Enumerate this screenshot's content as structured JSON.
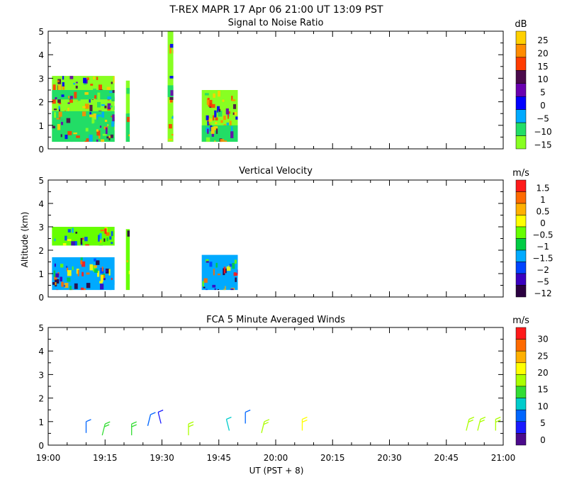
{
  "page": {
    "title": "T-REX  MAPR 17 Apr 06  21:00 UT  13:09  PST",
    "x_axis_label": "UT  (PST + 8)",
    "y_axis_label": "Altitude (km)"
  },
  "chart_data": [
    {
      "id": "snr",
      "type": "heatmap",
      "title": "Signal to Noise Ratio",
      "xlabel": "UT  (PST + 8)",
      "ylabel": "",
      "xlim": [
        0,
        120
      ],
      "ylim": [
        0,
        5
      ],
      "x_ticks": [
        "19:00",
        "19:15",
        "19:30",
        "19:45",
        "20:00",
        "20:15",
        "20:30",
        "20:45",
        "21:00"
      ],
      "y_ticks": [
        "0",
        "1",
        "2",
        "3",
        "4",
        "5"
      ],
      "colorbar": {
        "unit": "dB",
        "labels": [
          "25",
          "20",
          "15",
          "10",
          "5",
          "0",
          "−5",
          "−10",
          "−15"
        ],
        "colors": [
          "#ffd000",
          "#ff8c00",
          "#ff3c00",
          "#4b0a4b",
          "#6a00b0",
          "#0000ff",
          "#00aaff",
          "#22dd66",
          "#88ff22"
        ]
      },
      "data_regions": [
        {
          "t0": 1,
          "t1": 17.5,
          "alt0": 0.3,
          "alt1": 3.1,
          "fill": "#88ff22"
        },
        {
          "t0": 20.5,
          "t1": 21.5,
          "alt0": 0.3,
          "alt1": 2.9,
          "fill": "#88ff22"
        },
        {
          "t0": 31.5,
          "t1": 33,
          "alt0": 0.3,
          "alt1": 5.0,
          "fill": "#88ff22"
        },
        {
          "t0": 31.5,
          "t1": 33,
          "alt0": 2.2,
          "alt1": 2.7,
          "fill": "#22dd66"
        },
        {
          "t0": 1,
          "t1": 17.5,
          "alt0": 2.1,
          "alt1": 2.5,
          "fill": "#22dd66"
        },
        {
          "t0": 1,
          "t1": 17.5,
          "alt0": 0.3,
          "alt1": 1.6,
          "fill": "#22dd66"
        },
        {
          "t0": 20.5,
          "t1": 21.5,
          "alt0": 0.3,
          "alt1": 1.5,
          "fill": "#22dd66"
        },
        {
          "t0": 40.5,
          "t1": 50,
          "alt0": 0.3,
          "alt1": 2.5,
          "fill": "#88ff22"
        },
        {
          "t0": 40.5,
          "t1": 50,
          "alt0": 0.3,
          "alt1": 1.0,
          "fill": "#22dd66"
        }
      ]
    },
    {
      "id": "vv",
      "type": "heatmap",
      "title": "Vertical Velocity",
      "xlabel": "UT  (PST + 8)",
      "ylabel": "Altitude (km)",
      "xlim": [
        0,
        120
      ],
      "ylim": [
        0,
        5
      ],
      "x_ticks": [
        "19:00",
        "19:15",
        "19:30",
        "19:45",
        "20:00",
        "20:15",
        "20:30",
        "20:45",
        "21:00"
      ],
      "y_ticks": [
        "0",
        "1",
        "2",
        "3",
        "4",
        "5"
      ],
      "colorbar": {
        "unit": "m/s",
        "labels": [
          "1.5",
          "1",
          "0.5",
          "0",
          "−0.5",
          "−1",
          "−1.5",
          "−2",
          "−5",
          "−12"
        ],
        "colors": [
          "#ff1a1a",
          "#ff6a00",
          "#ffb000",
          "#ffff00",
          "#66ff00",
          "#00cc44",
          "#00aaff",
          "#0044ff",
          "#3a00c0",
          "#2a0040"
        ]
      },
      "data_regions": [
        {
          "t0": 1,
          "t1": 17.5,
          "alt0": 2.2,
          "alt1": 3.0,
          "fill": "#66ff00"
        },
        {
          "t0": 1,
          "t1": 17.5,
          "alt0": 0.3,
          "alt1": 1.7,
          "fill": "#00aaff"
        },
        {
          "t0": 20.5,
          "t1": 21.5,
          "alt0": 0.3,
          "alt1": 2.9,
          "fill": "#66ff00"
        },
        {
          "t0": 40.5,
          "t1": 50,
          "alt0": 0.3,
          "alt1": 1.8,
          "fill": "#00aaff"
        }
      ]
    },
    {
      "id": "winds",
      "type": "scatter",
      "title": "FCA 5 Minute Averaged Winds",
      "xlabel": "UT  (PST + 8)",
      "ylabel": "",
      "xlim": [
        0,
        120
      ],
      "ylim": [
        0,
        5
      ],
      "x_ticks": [
        "19:00",
        "19:15",
        "19:30",
        "19:45",
        "20:00",
        "20:15",
        "20:30",
        "20:45",
        "21:00"
      ],
      "y_ticks": [
        "0",
        "1",
        "2",
        "3",
        "4",
        "5"
      ],
      "colorbar": {
        "unit": "m/s",
        "labels": [
          "30",
          "25",
          "20",
          "15",
          "10",
          "5",
          "0"
        ],
        "colors": [
          "#ff1a1a",
          "#ff6a00",
          "#ffb000",
          "#ffff00",
          "#aaff00",
          "#33dd33",
          "#00cccc",
          "#0066ff",
          "#1a1aff",
          "#4b0a8b"
        ]
      },
      "barbs": [
        {
          "t": 10,
          "alt": 1.0,
          "speed": 6
        },
        {
          "t": 15,
          "alt": 0.9,
          "speed": 14
        },
        {
          "t": 22,
          "alt": 0.9,
          "speed": 13
        },
        {
          "t": 27,
          "alt": 1.3,
          "speed": 5
        },
        {
          "t": 29,
          "alt": 1.4,
          "speed": 3
        },
        {
          "t": 37,
          "alt": 0.9,
          "speed": 15
        },
        {
          "t": 47,
          "alt": 1.1,
          "speed": 9
        },
        {
          "t": 52,
          "alt": 1.4,
          "speed": 6
        },
        {
          "t": 57,
          "alt": 1.0,
          "speed": 17
        },
        {
          "t": 67,
          "alt": 1.1,
          "speed": 20
        },
        {
          "t": 111,
          "alt": 1.1,
          "speed": 17
        },
        {
          "t": 114,
          "alt": 1.1,
          "speed": 18
        },
        {
          "t": 118,
          "alt": 1.1,
          "speed": 15
        }
      ]
    }
  ]
}
